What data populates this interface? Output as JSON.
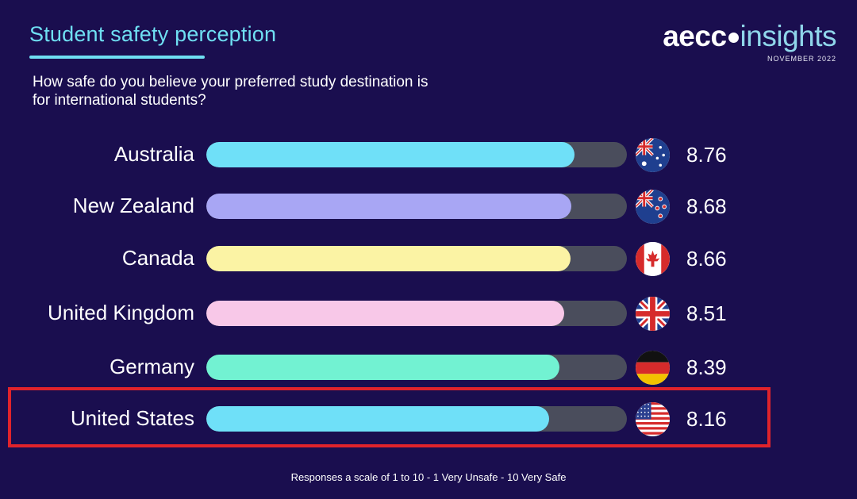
{
  "header": {
    "title": "Student safety perception",
    "subtitle": "How safe do you believe your preferred study destination is for international students?"
  },
  "brand": {
    "aecc": "aecc",
    "insights": "insights",
    "date": "NOVEMBER 2022"
  },
  "footnote": "Responses a scale of 1 to 10 - 1 Very Unsafe - 10 Very Safe",
  "colors": {
    "background": "#1a0e4f",
    "accent": "#6fdff2",
    "track": "#4a4d5c",
    "highlight_border": "#e0232b"
  },
  "chart_data": {
    "type": "bar",
    "orientation": "horizontal",
    "xlim": [
      0,
      10
    ],
    "categories": [
      "Australia",
      "New Zealand",
      "Canada",
      "United Kingdom",
      "Germany",
      "United States"
    ],
    "values": [
      8.76,
      8.68,
      8.66,
      8.51,
      8.39,
      8.16
    ],
    "value_labels": [
      "8.76",
      "8.68",
      "8.66",
      "8.51",
      "8.39",
      "8.16"
    ],
    "bar_colors": [
      "#6fe0f8",
      "#a8a6f4",
      "#fbf3a4",
      "#f8c8e8",
      "#72f2d2",
      "#6fe0f8"
    ],
    "flags": [
      "australia-flag",
      "new-zealand-flag",
      "canada-flag",
      "united-kingdom-flag",
      "germany-flag",
      "united-states-flag"
    ],
    "highlighted": "United States"
  }
}
